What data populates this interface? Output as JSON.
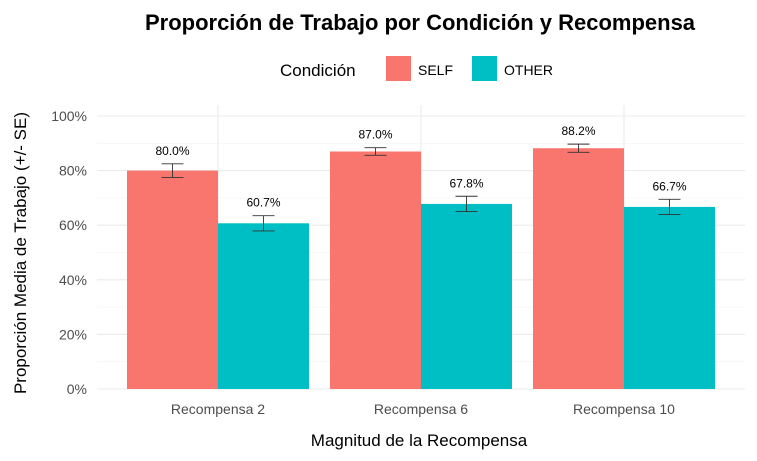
{
  "chart_data": {
    "type": "bar",
    "title": "Proporción de Trabajo por Condición y Recompensa",
    "xlabel": "Magnitud de la Recompensa",
    "ylabel": "Proporción Media de Trabajo (+/- SE)",
    "categories": [
      "Recompensa 2",
      "Recompensa 6",
      "Recompensa 10"
    ],
    "legend": {
      "title": "Condición",
      "position": "top"
    },
    "ylim": [
      0,
      1
    ],
    "yticks": [
      0,
      0.2,
      0.4,
      0.6,
      0.8,
      1.0
    ],
    "ytick_labels": [
      "0%",
      "20%",
      "40%",
      "60%",
      "80%",
      "100%"
    ],
    "grid": true,
    "series": [
      {
        "name": "SELF",
        "color": "#F8766D",
        "values": [
          0.8,
          0.87,
          0.882
        ],
        "se": [
          0.025,
          0.014,
          0.015
        ],
        "labels": [
          "80.0%",
          "87.0%",
          "88.2%"
        ]
      },
      {
        "name": "OTHER",
        "color": "#00BFC4",
        "values": [
          0.607,
          0.678,
          0.667
        ],
        "se": [
          0.028,
          0.028,
          0.028
        ],
        "labels": [
          "60.7%",
          "67.8%",
          "66.7%"
        ]
      }
    ]
  }
}
